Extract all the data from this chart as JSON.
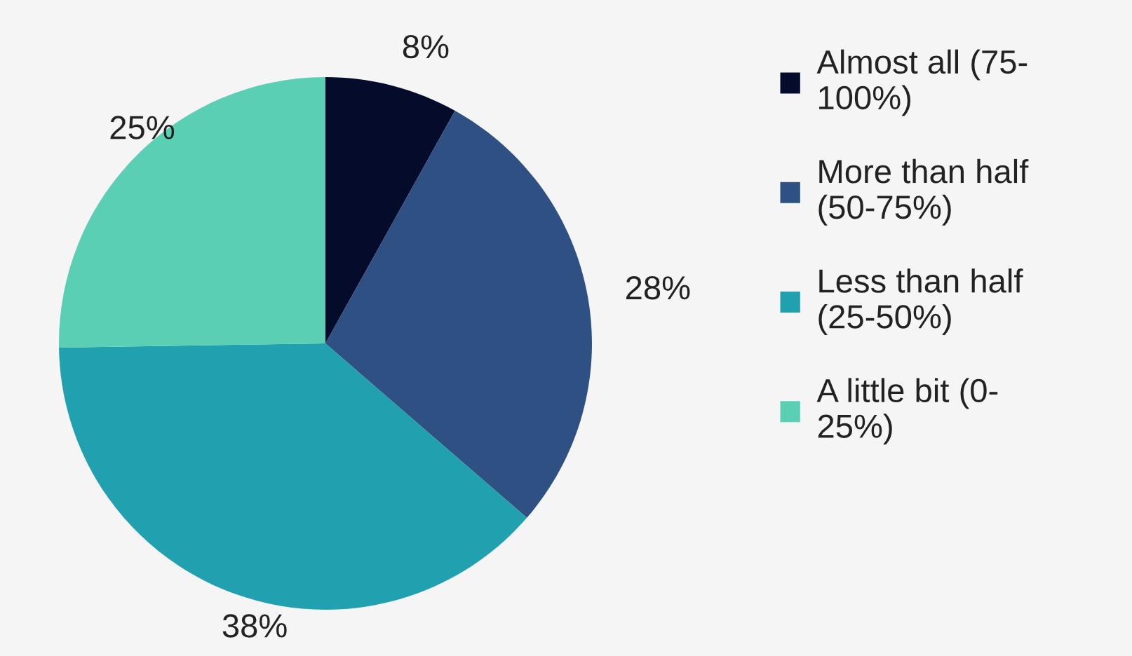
{
  "chart_data": {
    "type": "pie",
    "categories": [
      "Almost all (75-100%)",
      "More than half (50-75%)",
      "Less than half (25-50%)",
      "A little bit (0-25%)"
    ],
    "values": [
      8,
      28,
      38,
      25
    ],
    "colors": [
      "#050c2b",
      "#2e5083",
      "#21a0b0",
      "#5acfb3"
    ],
    "value_labels": [
      "8%",
      "28%",
      "38%",
      "25%"
    ],
    "legend": "right"
  }
}
